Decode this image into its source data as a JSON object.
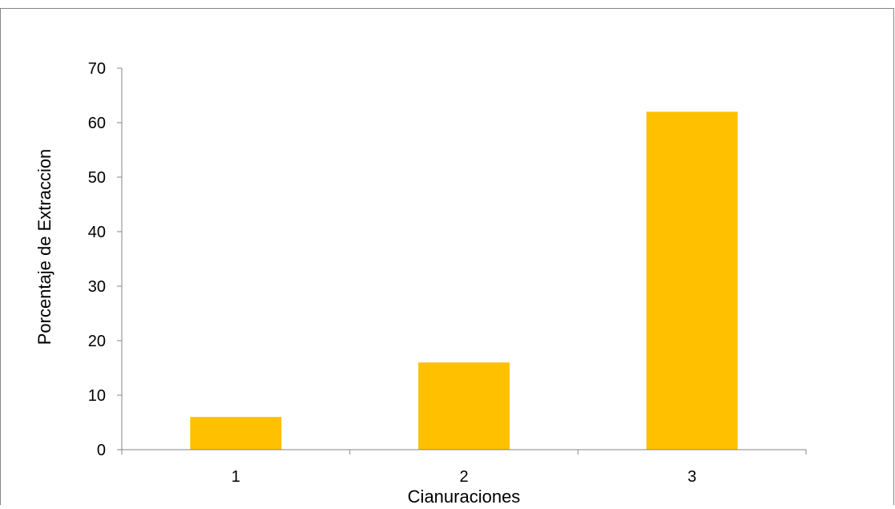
{
  "chart_data": {
    "type": "bar",
    "title": "",
    "xlabel": "Cianuraciones",
    "ylabel": "Porcentaje de Extraccion",
    "categories": [
      "1",
      "2",
      "3"
    ],
    "values": [
      6,
      16,
      62
    ],
    "ylim": [
      0,
      70
    ],
    "yticks": [
      "0",
      "10",
      "20",
      "30",
      "40",
      "50",
      "60",
      "70"
    ],
    "grid": false,
    "legend": "none",
    "bar_color": "#FFC000",
    "axis_color": "#868686",
    "border_color": "#868686"
  }
}
